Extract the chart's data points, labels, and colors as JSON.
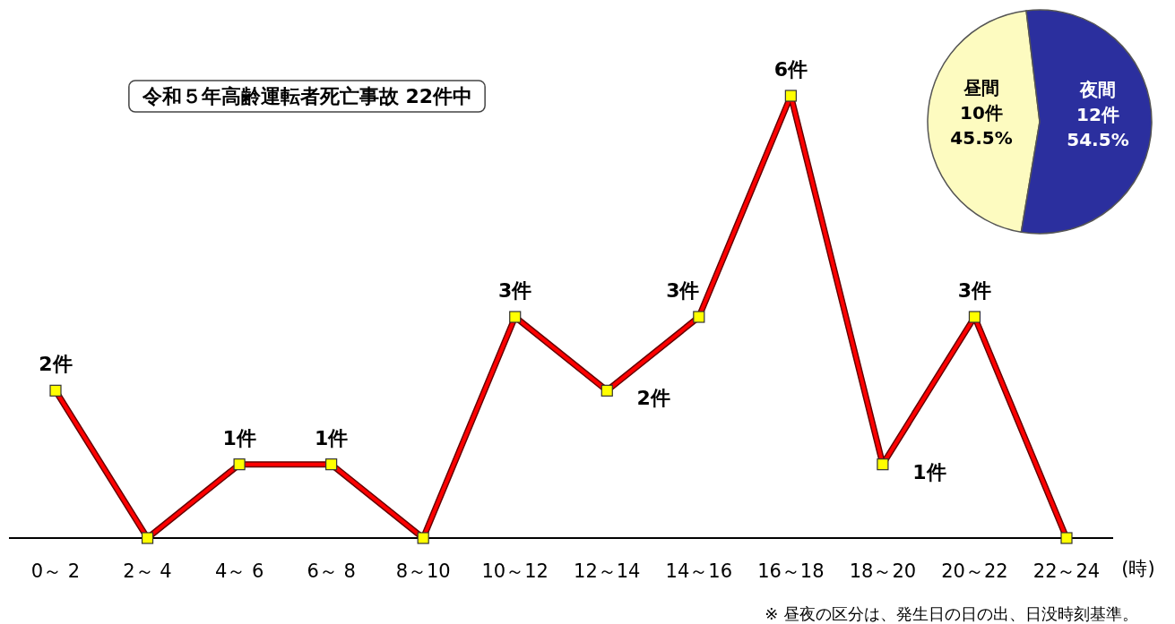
{
  "chart_data": [
    {
      "type": "line",
      "title": "令和５年高齢運転者死亡事故 22件中",
      "xlabel": "(時)",
      "categories": [
        "0～ 2",
        "2～ 4",
        "4～ 6",
        "6～ 8",
        "8～10",
        "10～12",
        "12～14",
        "14～16",
        "16～18",
        "18～20",
        "20～22",
        "22～24"
      ],
      "series": [
        {
          "color": "#ff0000",
          "values": [
            2,
            0,
            1,
            1,
            0,
            3,
            2,
            3,
            6,
            1,
            3,
            0
          ],
          "value_labels": [
            "2件",
            null,
            "1件",
            "1件",
            null,
            "3件",
            "2件",
            "3件",
            "6件",
            "1件",
            "3件",
            null
          ]
        }
      ],
      "marker": "square",
      "line_style": "solid",
      "annotations": [
        "※ 昼夜の区分は、発生日の日の出、日没時刻基準。"
      ]
    },
    {
      "type": "pie",
      "categories": [
        "昼間",
        "夜間"
      ],
      "values": [
        10,
        12
      ],
      "colors": [
        "#fdfbc0",
        "#2b2f9e"
      ],
      "value_labels": [
        "10件\n45.5%",
        "12件\n54.5%"
      ]
    }
  ]
}
